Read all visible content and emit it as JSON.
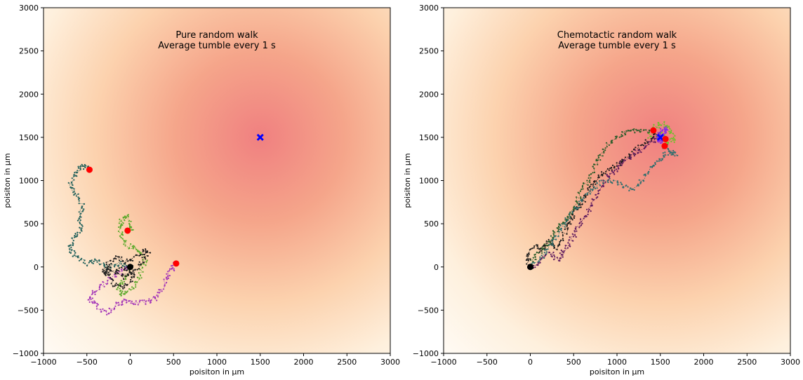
{
  "chart_data": [
    {
      "type": "scatter",
      "title_line1": "Pure random walk",
      "title_line2": "Average tumble every 1 s",
      "xlabel": "poisiton in µm",
      "ylabel": "poisiton in µm",
      "xlim": [
        -1000,
        3000
      ],
      "ylim": [
        -1000,
        3000
      ],
      "xticks": [
        -1000,
        -500,
        0,
        500,
        1000,
        1500,
        2000,
        2500,
        3000
      ],
      "yticks": [
        -1000,
        -500,
        0,
        500,
        1000,
        1500,
        2000,
        2500,
        3000
      ],
      "gradient_center": [
        1500,
        1500
      ],
      "target": {
        "x": 1500,
        "y": 1500,
        "color": "#0000ff"
      },
      "start": {
        "x": 0,
        "y": 0,
        "color": "#000000"
      },
      "endpoints": [
        {
          "x": -470,
          "y": 1125
        },
        {
          "x": -30,
          "y": 420
        },
        {
          "x": 530,
          "y": 40
        }
      ],
      "endpoint_color": "#ff0000",
      "series": [
        {
          "color": "#1f5f5a",
          "points": [
            [
              0,
              0
            ],
            [
              -120,
              40
            ],
            [
              -260,
              -10
            ],
            [
              -380,
              80
            ],
            [
              -500,
              40
            ],
            [
              -620,
              120
            ],
            [
              -700,
              230
            ],
            [
              -640,
              330
            ],
            [
              -560,
              420
            ],
            [
              -600,
              560
            ],
            [
              -540,
              700
            ],
            [
              -620,
              840
            ],
            [
              -690,
              960
            ],
            [
              -620,
              1080
            ],
            [
              -560,
              1180
            ],
            [
              -470,
              1125
            ]
          ]
        },
        {
          "color": "#5aa82a",
          "points": [
            [
              0,
              0
            ],
            [
              -60,
              -140
            ],
            [
              -140,
              -230
            ],
            [
              -80,
              -320
            ],
            [
              20,
              -260
            ],
            [
              110,
              -120
            ],
            [
              170,
              60
            ],
            [
              100,
              200
            ],
            [
              -20,
              250
            ],
            [
              -110,
              380
            ],
            [
              -120,
              520
            ],
            [
              -40,
              590
            ],
            [
              30,
              450
            ],
            [
              -30,
              420
            ]
          ]
        },
        {
          "color": "#a233b8",
          "points": [
            [
              0,
              0
            ],
            [
              -120,
              -60
            ],
            [
              -260,
              -160
            ],
            [
              -380,
              -260
            ],
            [
              -480,
              -360
            ],
            [
              -380,
              -460
            ],
            [
              -270,
              -540
            ],
            [
              -170,
              -450
            ],
            [
              -60,
              -380
            ],
            [
              80,
              -420
            ],
            [
              230,
              -400
            ],
            [
              330,
              -320
            ],
            [
              420,
              -150
            ],
            [
              460,
              -40
            ],
            [
              530,
              40
            ]
          ]
        },
        {
          "color": "#1a1a1a",
          "points": [
            [
              0,
              0
            ],
            [
              -160,
              -40
            ],
            [
              -310,
              -90
            ],
            [
              -240,
              20
            ],
            [
              -100,
              -120
            ],
            [
              30,
              -60
            ],
            [
              150,
              80
            ],
            [
              220,
              200
            ],
            [
              80,
              140
            ],
            [
              -40,
              60
            ],
            [
              -180,
              120
            ],
            [
              -300,
              -20
            ],
            [
              -200,
              -200
            ],
            [
              -60,
              -240
            ],
            [
              40,
              -120
            ],
            [
              0,
              0
            ]
          ]
        }
      ]
    },
    {
      "type": "scatter",
      "title_line1": "Chemotactic random walk",
      "title_line2": "Average tumble every 1 s",
      "xlabel": "poisiton in µm",
      "ylabel": "poisiton in µm",
      "xlim": [
        -1000,
        3000
      ],
      "ylim": [
        -1000,
        3000
      ],
      "xticks": [
        -1000,
        -500,
        0,
        500,
        1000,
        1500,
        2000,
        2500,
        3000
      ],
      "yticks": [
        -1000,
        -500,
        0,
        500,
        1000,
        1500,
        2000,
        2500,
        3000
      ],
      "gradient_center": [
        1500,
        1500
      ],
      "target": {
        "x": 1500,
        "y": 1500,
        "color": "#0000ff"
      },
      "start": {
        "x": 0,
        "y": 0,
        "color": "#000000"
      },
      "endpoints": [
        {
          "x": 1420,
          "y": 1580
        },
        {
          "x": 1560,
          "y": 1480
        },
        {
          "x": 1550,
          "y": 1400
        }
      ],
      "endpoint_color": "#ff0000",
      "series": [
        {
          "color": "#1a1a1a",
          "points": [
            [
              0,
              0
            ],
            [
              -40,
              130
            ],
            [
              60,
              240
            ],
            [
              150,
              180
            ],
            [
              210,
              300
            ],
            [
              300,
              210
            ],
            [
              380,
              360
            ],
            [
              460,
              520
            ],
            [
              520,
              640
            ],
            [
              600,
              760
            ],
            [
              680,
              900
            ],
            [
              760,
              1020
            ],
            [
              880,
              1100
            ],
            [
              1000,
              1180
            ],
            [
              1120,
              1260
            ],
            [
              1250,
              1380
            ],
            [
              1380,
              1480
            ],
            [
              1480,
              1540
            ]
          ]
        },
        {
          "color": "#5e1a5e",
          "points": [
            [
              0,
              0
            ],
            [
              120,
              60
            ],
            [
              220,
              160
            ],
            [
              320,
              80
            ],
            [
              400,
              200
            ],
            [
              480,
              330
            ],
            [
              560,
              460
            ],
            [
              640,
              600
            ],
            [
              720,
              760
            ],
            [
              820,
              920
            ],
            [
              900,
              1060
            ],
            [
              1000,
              1120
            ],
            [
              1100,
              1240
            ],
            [
              1220,
              1320
            ],
            [
              1340,
              1400
            ],
            [
              1460,
              1500
            ],
            [
              1560,
              1480
            ]
          ]
        },
        {
          "color": "#2a5c2a",
          "points": [
            [
              0,
              0
            ],
            [
              80,
              160
            ],
            [
              180,
              240
            ],
            [
              260,
              360
            ],
            [
              340,
              470
            ],
            [
              420,
              560
            ],
            [
              520,
              700
            ],
            [
              580,
              860
            ],
            [
              660,
              1000
            ],
            [
              740,
              1150
            ],
            [
              800,
              1300
            ],
            [
              900,
              1420
            ],
            [
              1020,
              1520
            ],
            [
              1150,
              1580
            ],
            [
              1280,
              1560
            ],
            [
              1420,
              1580
            ]
          ]
        },
        {
          "color": "#2e6e6e",
          "points": [
            [
              0,
              0
            ],
            [
              140,
              120
            ],
            [
              240,
              260
            ],
            [
              330,
              400
            ],
            [
              430,
              540
            ],
            [
              540,
              680
            ],
            [
              640,
              820
            ],
            [
              760,
              940
            ],
            [
              900,
              1020
            ],
            [
              1040,
              960
            ],
            [
              1180,
              900
            ],
            [
              1300,
              1020
            ],
            [
              1420,
              1160
            ],
            [
              1520,
              1260
            ],
            [
              1600,
              1330
            ],
            [
              1680,
              1300
            ],
            [
              1560,
              1400
            ],
            [
              1550,
              1400
            ]
          ]
        },
        {
          "color": "#6fbf2a",
          "points": [
            [
              1380,
              1500
            ],
            [
              1440,
              1620
            ],
            [
              1520,
              1660
            ],
            [
              1600,
              1580
            ],
            [
              1660,
              1480
            ],
            [
              1580,
              1440
            ],
            [
              1500,
              1560
            ],
            [
              1460,
              1500
            ]
          ]
        },
        {
          "color": "#8a2be2",
          "points": [
            [
              1480,
              1440
            ],
            [
              1540,
              1520
            ],
            [
              1580,
              1600
            ],
            [
              1500,
              1560
            ],
            [
              1460,
              1480
            ],
            [
              1520,
              1460
            ]
          ]
        }
      ]
    }
  ]
}
